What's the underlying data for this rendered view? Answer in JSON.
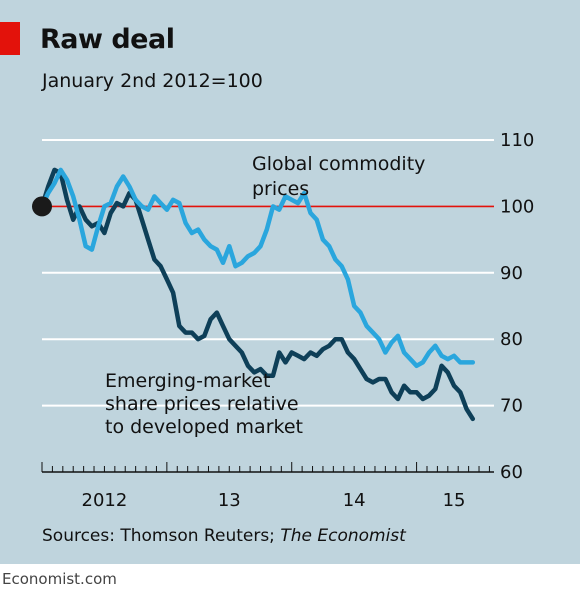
{
  "header": {
    "title": "Raw deal",
    "subtitle": "January 2nd 2012=100"
  },
  "source": {
    "prefix": "Sources: Thomson Reuters; ",
    "publication": "The Economist"
  },
  "footer": {
    "brand": "Economist.com"
  },
  "colors": {
    "background": "#bfd4dd",
    "commodity": "#2aa6dd",
    "emerging": "#0e3f58",
    "baseline": "#e3120b",
    "grid": "#ffffff",
    "tag": "#e3120b"
  },
  "chart_data": {
    "type": "line",
    "ylim": [
      60,
      110
    ],
    "yticks": [
      "60",
      "70",
      "80",
      "90",
      "100",
      "110"
    ],
    "xlim": [
      2012.0,
      2015.62
    ],
    "xticks": [
      {
        "label": "2012",
        "x": 2012.5
      },
      {
        "label": "13",
        "x": 2013.5
      },
      {
        "label": "14",
        "x": 2014.5
      },
      {
        "label": "15",
        "x": 2015.3
      }
    ],
    "baseline": 100,
    "series": [
      {
        "name": "Global commodity prices",
        "color": "#2aa6dd",
        "x": [
          2012.0,
          2012.05,
          2012.1,
          2012.15,
          2012.2,
          2012.25,
          2012.3,
          2012.35,
          2012.4,
          2012.45,
          2012.5,
          2012.55,
          2012.6,
          2012.65,
          2012.7,
          2012.75,
          2012.8,
          2012.85,
          2012.9,
          2012.95,
          2013.0,
          2013.05,
          2013.1,
          2013.15,
          2013.2,
          2013.25,
          2013.3,
          2013.35,
          2013.4,
          2013.45,
          2013.5,
          2013.55,
          2013.6,
          2013.65,
          2013.7,
          2013.75,
          2013.8,
          2013.85,
          2013.9,
          2013.95,
          2014.0,
          2014.05,
          2014.1,
          2014.15,
          2014.2,
          2014.25,
          2014.3,
          2014.35,
          2014.4,
          2014.45,
          2014.5,
          2014.55,
          2014.6,
          2014.65,
          2014.7,
          2014.75,
          2014.8,
          2014.85,
          2014.9,
          2014.95,
          2015.0,
          2015.05,
          2015.1,
          2015.15,
          2015.2,
          2015.25,
          2015.3,
          2015.35,
          2015.4,
          2015.45
        ],
        "values": [
          100,
          102,
          103.5,
          105.5,
          104,
          101.5,
          98,
          94,
          93.5,
          97,
          100,
          100.5,
          103,
          104.5,
          103,
          101,
          100,
          99.5,
          101.5,
          100.5,
          99.5,
          101,
          100.5,
          97.5,
          96,
          96.5,
          95,
          94,
          93.5,
          91.5,
          94,
          91,
          91.5,
          92.5,
          93,
          94,
          96.5,
          100,
          99.5,
          101.5,
          101,
          100.5,
          102,
          99,
          98,
          95,
          94,
          92,
          91,
          89,
          85,
          84,
          82,
          81,
          80,
          78,
          79.5,
          80.5,
          78,
          77,
          76,
          76.5,
          78,
          79,
          77.5,
          77,
          77.5,
          76.5,
          76.5,
          76.5
        ]
      },
      {
        "name": "Emerging-market share prices relative to developed market",
        "color": "#0e3f58",
        "x": [
          2012.0,
          2012.05,
          2012.1,
          2012.15,
          2012.2,
          2012.25,
          2012.3,
          2012.35,
          2012.4,
          2012.45,
          2012.5,
          2012.55,
          2012.6,
          2012.65,
          2012.7,
          2012.75,
          2012.8,
          2012.85,
          2012.9,
          2012.95,
          2013.0,
          2013.05,
          2013.1,
          2013.15,
          2013.2,
          2013.25,
          2013.3,
          2013.35,
          2013.4,
          2013.45,
          2013.5,
          2013.55,
          2013.6,
          2013.65,
          2013.7,
          2013.75,
          2013.8,
          2013.85,
          2013.9,
          2013.95,
          2014.0,
          2014.05,
          2014.1,
          2014.15,
          2014.2,
          2014.25,
          2014.3,
          2014.35,
          2014.4,
          2014.45,
          2014.5,
          2014.55,
          2014.6,
          2014.65,
          2014.7,
          2014.75,
          2014.8,
          2014.85,
          2014.9,
          2014.95,
          2015.0,
          2015.05,
          2015.1,
          2015.15,
          2015.2,
          2015.25,
          2015.3,
          2015.35,
          2015.4,
          2015.45
        ],
        "values": [
          100,
          103,
          105.5,
          105,
          101,
          98,
          100,
          98,
          97,
          97.5,
          96,
          99,
          100.5,
          100,
          102,
          101,
          98,
          95,
          92,
          91,
          89,
          87,
          82,
          81,
          81,
          80,
          80.5,
          83,
          84,
          82,
          80,
          79,
          78,
          76,
          75,
          75.5,
          74.5,
          74.5,
          78,
          76.5,
          78,
          77.5,
          77,
          78,
          77.5,
          78.5,
          79,
          80,
          80,
          78,
          77,
          75.5,
          74,
          73.5,
          74,
          74,
          72,
          71,
          73,
          72,
          72,
          71,
          71.5,
          72.5,
          76,
          75,
          73,
          72,
          69.5,
          68
        ]
      }
    ],
    "annotations": [
      {
        "series": 0,
        "lines": [
          "Global commodity",
          "prices"
        ]
      },
      {
        "series": 1,
        "lines": [
          "Emerging-market",
          "share prices relative",
          "to developed market"
        ]
      }
    ]
  }
}
